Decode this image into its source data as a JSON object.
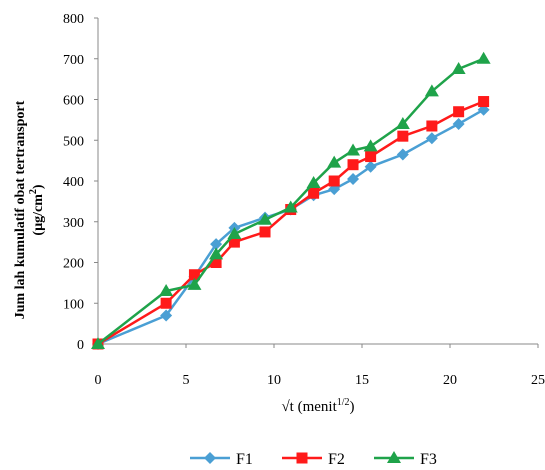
{
  "chart_data": {
    "type": "line",
    "xlabel": "√t (menit",
    "xlabel_sup": "1/2",
    "xlabel_close": ")",
    "ylabel_line1": "Jum lah kumulatif obat tertransport",
    "ylabel_line2": "(µg/cm",
    "ylabel_sup": "2",
    "ylabel_close": ")",
    "xlim": [
      0,
      25
    ],
    "ylim": [
      0,
      800
    ],
    "xticks": [
      0,
      5,
      10,
      15,
      20,
      25
    ],
    "yticks": [
      0,
      100,
      200,
      300,
      400,
      500,
      600,
      700,
      800
    ],
    "x_tick_labels": [
      "0",
      "5",
      "10",
      "15",
      "20",
      "25"
    ],
    "y_tick_labels": [
      "0",
      "100",
      "200",
      "300",
      "400",
      "500",
      "600",
      "700",
      "800"
    ],
    "grid": false,
    "legend_position": "bottom",
    "x": [
      0,
      3.87,
      5.48,
      6.71,
      7.75,
      9.49,
      10.95,
      12.25,
      13.42,
      14.49,
      15.49,
      17.32,
      18.97,
      20.49,
      21.91
    ],
    "series": [
      {
        "name": "F1",
        "color": "#4a9fd4",
        "marker": "diamond",
        "values": [
          0,
          70,
          165,
          245,
          285,
          310,
          330,
          365,
          380,
          405,
          435,
          465,
          505,
          540,
          575
        ]
      },
      {
        "name": "F2",
        "color": "#ff1a1a",
        "marker": "square",
        "values": [
          0,
          100,
          170,
          200,
          250,
          275,
          330,
          370,
          400,
          440,
          460,
          510,
          535,
          570,
          595
        ]
      },
      {
        "name": "F3",
        "color": "#1fa34a",
        "marker": "triangle",
        "values": [
          0,
          130,
          145,
          220,
          270,
          305,
          335,
          395,
          445,
          475,
          485,
          540,
          620,
          675,
          700
        ]
      }
    ]
  }
}
